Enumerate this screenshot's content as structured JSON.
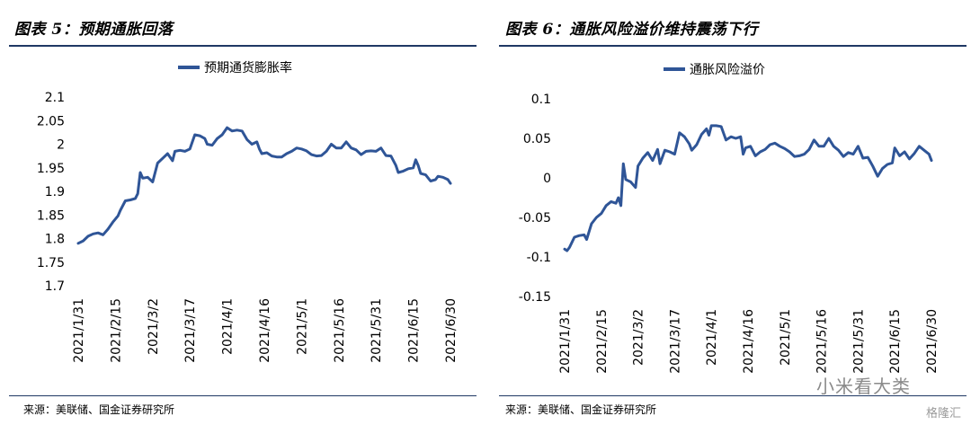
{
  "panels": [
    {
      "header": "图表 5：预期通胀回落",
      "source": "来源：美联储、国金证券研究所",
      "chart_data": {
        "type": "line",
        "title": "",
        "xlabel": "",
        "ylabel": "",
        "ylim": [
          1.7,
          2.1
        ],
        "yticks": [
          "1.7",
          "1.75",
          "1.8",
          "1.85",
          "1.9",
          "1.95",
          "2",
          "2.05",
          "2.1"
        ],
        "xticks": [
          "2021/1/31",
          "2021/2/15",
          "2021/3/2",
          "2021/3/17",
          "2021/4/1",
          "2021/4/16",
          "2021/5/1",
          "2021/5/16",
          "2021/5/31",
          "2021/6/15",
          "2021/6/30"
        ],
        "x_start": "2021/1/31",
        "x_end": "2021/6/30",
        "grid": false,
        "legend": "top",
        "color": "#2f5597",
        "series": [
          {
            "name": "预期通货膨胀率",
            "points": [
              [
                "2021/1/31",
                1.79
              ],
              [
                "2021/2/2",
                1.795
              ],
              [
                "2021/2/4",
                1.805
              ],
              [
                "2021/2/6",
                1.81
              ],
              [
                "2021/2/8",
                1.812
              ],
              [
                "2021/2/10",
                1.808
              ],
              [
                "2021/2/12",
                1.82
              ],
              [
                "2021/2/14",
                1.835
              ],
              [
                "2021/2/16",
                1.848
              ],
              [
                "2021/2/17",
                1.86
              ],
              [
                "2021/2/19",
                1.88
              ],
              [
                "2021/2/21",
                1.882
              ],
              [
                "2021/2/23",
                1.885
              ],
              [
                "2021/2/24",
                1.895
              ],
              [
                "2021/2/25",
                1.94
              ],
              [
                "2021/2/26",
                1.928
              ],
              [
                "2021/2/28",
                1.93
              ],
              [
                "2021/3/2",
                1.92
              ],
              [
                "2021/3/4",
                1.96
              ],
              [
                "2021/3/6",
                1.97
              ],
              [
                "2021/3/8",
                1.98
              ],
              [
                "2021/3/10",
                1.965
              ],
              [
                "2021/3/11",
                1.985
              ],
              [
                "2021/3/13",
                1.987
              ],
              [
                "2021/3/15",
                1.985
              ],
              [
                "2021/3/17",
                1.99
              ],
              [
                "2021/3/19",
                2.02
              ],
              [
                "2021/3/21",
                2.018
              ],
              [
                "2021/3/23",
                2.012
              ],
              [
                "2021/3/24",
                2.0
              ],
              [
                "2021/3/26",
                1.998
              ],
              [
                "2021/3/28",
                2.012
              ],
              [
                "2021/3/30",
                2.02
              ],
              [
                "2021/4/1",
                2.035
              ],
              [
                "2021/4/3",
                2.028
              ],
              [
                "2021/4/5",
                2.03
              ],
              [
                "2021/4/7",
                2.028
              ],
              [
                "2021/4/9",
                2.01
              ],
              [
                "2021/4/11",
                2.0
              ],
              [
                "2021/4/13",
                2.005
              ],
              [
                "2021/4/14",
                1.99
              ],
              [
                "2021/4/15",
                1.98
              ],
              [
                "2021/4/17",
                1.982
              ],
              [
                "2021/4/19",
                1.975
              ],
              [
                "2021/4/21",
                1.973
              ],
              [
                "2021/4/23",
                1.973
              ],
              [
                "2021/4/25",
                1.98
              ],
              [
                "2021/4/27",
                1.985
              ],
              [
                "2021/4/29",
                1.992
              ],
              [
                "2021/5/1",
                1.99
              ],
              [
                "2021/5/3",
                1.986
              ],
              [
                "2021/5/5",
                1.978
              ],
              [
                "2021/5/7",
                1.975
              ],
              [
                "2021/5/9",
                1.976
              ],
              [
                "2021/5/11",
                1.985
              ],
              [
                "2021/5/13",
                2.0
              ],
              [
                "2021/5/15",
                1.992
              ],
              [
                "2021/5/17",
                1.992
              ],
              [
                "2021/5/19",
                2.005
              ],
              [
                "2021/5/21",
                1.992
              ],
              [
                "2021/5/23",
                1.988
              ],
              [
                "2021/5/25",
                1.978
              ],
              [
                "2021/5/27",
                1.985
              ],
              [
                "2021/5/29",
                1.986
              ],
              [
                "2021/5/31",
                1.985
              ],
              [
                "2021/6/2",
                1.992
              ],
              [
                "2021/6/4",
                1.976
              ],
              [
                "2021/6/6",
                1.975
              ],
              [
                "2021/6/8",
                1.955
              ],
              [
                "2021/6/9",
                1.94
              ],
              [
                "2021/6/11",
                1.943
              ],
              [
                "2021/6/13",
                1.948
              ],
              [
                "2021/6/15",
                1.95
              ],
              [
                "2021/6/16",
                1.967
              ],
              [
                "2021/6/17",
                1.955
              ],
              [
                "2021/6/18",
                1.938
              ],
              [
                "2021/6/20",
                1.935
              ],
              [
                "2021/6/22",
                1.922
              ],
              [
                "2021/6/24",
                1.925
              ],
              [
                "2021/6/25",
                1.932
              ],
              [
                "2021/6/27",
                1.93
              ],
              [
                "2021/6/29",
                1.925
              ],
              [
                "2021/6/30",
                1.917
              ]
            ]
          }
        ]
      }
    },
    {
      "header": "图表 6：通胀风险溢价维持震荡下行",
      "source": "来源：美联储、国金证券研究所",
      "chart_data": {
        "type": "line",
        "title": "",
        "xlabel": "",
        "ylabel": "",
        "ylim": [
          -0.15,
          0.1
        ],
        "yticks": [
          "-0.15",
          "-0.1",
          "-0.05",
          "0",
          "0.05",
          "0.1"
        ],
        "xticks": [
          "2021/1/31",
          "2021/2/15",
          "2021/3/2",
          "2021/3/17",
          "2021/4/1",
          "2021/4/16",
          "2021/5/1",
          "2021/5/16",
          "2021/5/31",
          "2021/6/15",
          "2021/6/30"
        ],
        "x_start": "2021/1/31",
        "x_end": "2021/6/30",
        "grid": false,
        "legend": "top",
        "color": "#2f5597",
        "series": [
          {
            "name": "通胀风险溢价",
            "points": [
              [
                "2021/1/31",
                -0.09
              ],
              [
                "2021/2/1",
                -0.092
              ],
              [
                "2021/2/2",
                -0.088
              ],
              [
                "2021/2/4",
                -0.075
              ],
              [
                "2021/2/6",
                -0.073
              ],
              [
                "2021/2/8",
                -0.072
              ],
              [
                "2021/2/9",
                -0.078
              ],
              [
                "2021/2/11",
                -0.058
              ],
              [
                "2021/2/13",
                -0.05
              ],
              [
                "2021/2/15",
                -0.045
              ],
              [
                "2021/2/17",
                -0.035
              ],
              [
                "2021/2/19",
                -0.03
              ],
              [
                "2021/2/21",
                -0.032
              ],
              [
                "2021/2/22",
                -0.025
              ],
              [
                "2021/2/23",
                -0.035
              ],
              [
                "2021/2/24",
                0.018
              ],
              [
                "2021/2/25",
                -0.002
              ],
              [
                "2021/2/27",
                -0.005
              ],
              [
                "2021/3/1",
                -0.012
              ],
              [
                "2021/3/2",
                0.015
              ],
              [
                "2021/3/4",
                0.025
              ],
              [
                "2021/3/6",
                0.032
              ],
              [
                "2021/3/8",
                0.022
              ],
              [
                "2021/3/10",
                0.036
              ],
              [
                "2021/3/11",
                0.018
              ],
              [
                "2021/3/13",
                0.035
              ],
              [
                "2021/3/15",
                0.033
              ],
              [
                "2021/3/17",
                0.03
              ],
              [
                "2021/3/19",
                0.057
              ],
              [
                "2021/3/21",
                0.052
              ],
              [
                "2021/3/23",
                0.043
              ],
              [
                "2021/3/24",
                0.035
              ],
              [
                "2021/3/26",
                0.042
              ],
              [
                "2021/3/28",
                0.055
              ],
              [
                "2021/3/30",
                0.062
              ],
              [
                "2021/3/31",
                0.054
              ],
              [
                "2021/4/1",
                0.066
              ],
              [
                "2021/4/3",
                0.066
              ],
              [
                "2021/4/5",
                0.065
              ],
              [
                "2021/4/7",
                0.048
              ],
              [
                "2021/4/9",
                0.052
              ],
              [
                "2021/4/11",
                0.05
              ],
              [
                "2021/4/13",
                0.052
              ],
              [
                "2021/4/14",
                0.03
              ],
              [
                "2021/4/15",
                0.038
              ],
              [
                "2021/4/17",
                0.04
              ],
              [
                "2021/4/19",
                0.028
              ],
              [
                "2021/4/21",
                0.033
              ],
              [
                "2021/4/23",
                0.036
              ],
              [
                "2021/4/25",
                0.042
              ],
              [
                "2021/4/27",
                0.044
              ],
              [
                "2021/4/29",
                0.04
              ],
              [
                "2021/5/1",
                0.037
              ],
              [
                "2021/5/3",
                0.033
              ],
              [
                "2021/5/5",
                0.027
              ],
              [
                "2021/5/7",
                0.028
              ],
              [
                "2021/5/9",
                0.03
              ],
              [
                "2021/5/11",
                0.036
              ],
              [
                "2021/5/13",
                0.048
              ],
              [
                "2021/5/15",
                0.04
              ],
              [
                "2021/5/17",
                0.04
              ],
              [
                "2021/5/19",
                0.05
              ],
              [
                "2021/5/21",
                0.04
              ],
              [
                "2021/5/23",
                0.035
              ],
              [
                "2021/5/25",
                0.027
              ],
              [
                "2021/5/27",
                0.032
              ],
              [
                "2021/5/29",
                0.03
              ],
              [
                "2021/5/31",
                0.04
              ],
              [
                "2021/6/2",
                0.025
              ],
              [
                "2021/6/4",
                0.026
              ],
              [
                "2021/6/6",
                0.015
              ],
              [
                "2021/6/8",
                0.002
              ],
              [
                "2021/6/10",
                0.012
              ],
              [
                "2021/6/12",
                0.017
              ],
              [
                "2021/6/14",
                0.019
              ],
              [
                "2021/6/15",
                0.038
              ],
              [
                "2021/6/17",
                0.028
              ],
              [
                "2021/6/19",
                0.033
              ],
              [
                "2021/6/21",
                0.024
              ],
              [
                "2021/6/23",
                0.031
              ],
              [
                "2021/6/25",
                0.04
              ],
              [
                "2021/6/27",
                0.035
              ],
              [
                "2021/6/29",
                0.03
              ],
              [
                "2021/6/30",
                0.022
              ]
            ]
          }
        ]
      }
    }
  ],
  "watermark": {
    "text": "小米看大类",
    "brand": "格隆汇"
  }
}
